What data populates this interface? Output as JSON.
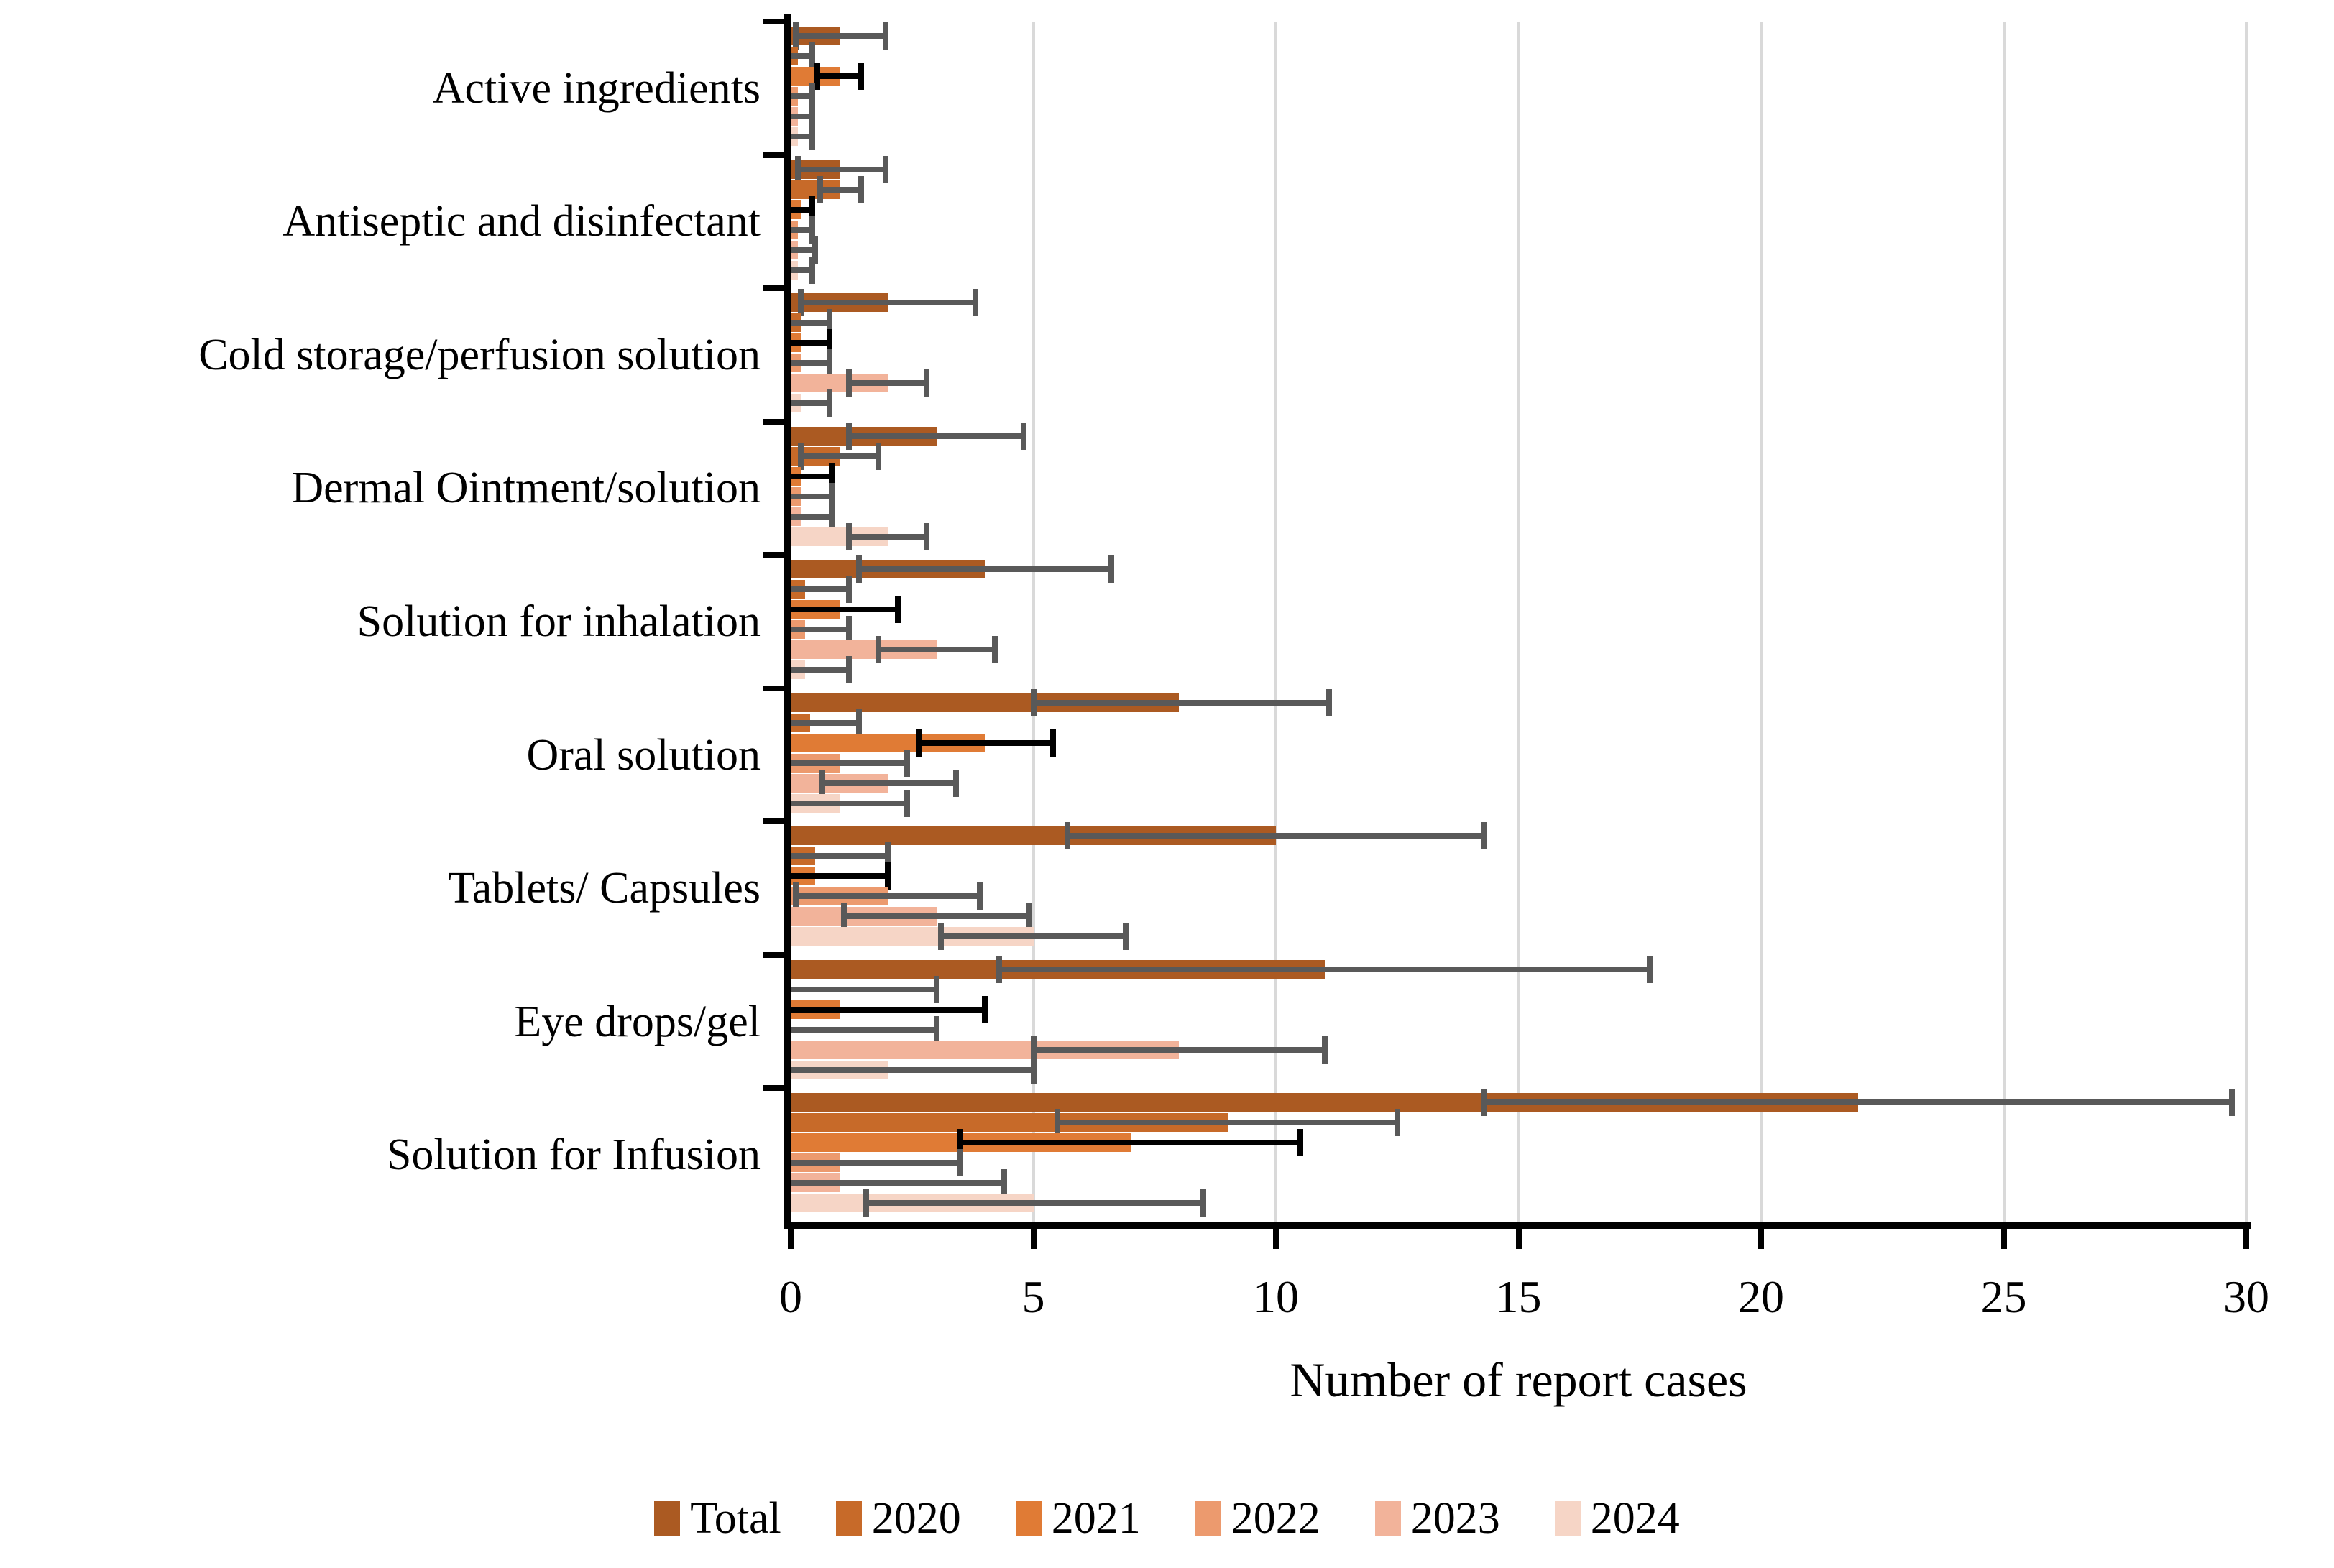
{
  "chart_data": {
    "type": "bar",
    "orientation": "horizontal-grouped",
    "xlabel": "Number of report cases",
    "xlim": [
      0,
      30
    ],
    "xticks": [
      0,
      5,
      10,
      15,
      20,
      25,
      30
    ],
    "grid": "vertical-light-gray",
    "legend_position": "bottom-center",
    "categories": [
      "Active ingredients",
      "Antiseptic and disinfectant",
      "Cold storage/perfusion solution",
      "Dermal Ointment/solution",
      "Solution for inhalation",
      "Oral solution",
      "Tablets/ Capsules",
      "Eye drops/gel",
      "Solution for Infusion"
    ],
    "colors": {
      "grid": "#d9d9d9",
      "axis": "#000000",
      "error_default": "#595959",
      "error_2021": "#000000"
    },
    "series": [
      {
        "name": "Total",
        "color": "#ab5a22",
        "error_color": "#595959",
        "values": [
          1,
          1,
          2,
          3,
          4,
          8,
          10,
          11,
          22
        ],
        "err_low": [
          0.1,
          0.15,
          0.2,
          1.2,
          1.4,
          5.0,
          5.7,
          4.3,
          14.3
        ],
        "err_high": [
          1.95,
          1.95,
          3.8,
          4.8,
          6.6,
          11.1,
          14.3,
          17.7,
          29.7
        ]
      },
      {
        "name": "2020",
        "color": "#c76a29",
        "error_color": "#595959",
        "values": [
          0.15,
          1,
          0.2,
          1,
          0.3,
          0.4,
          0.5,
          0,
          9
        ],
        "err_low": [
          0,
          0.6,
          0,
          0.2,
          0,
          0,
          0,
          0,
          5.5
        ],
        "err_high": [
          0.45,
          1.45,
          0.8,
          1.8,
          1.2,
          1.4,
          2.0,
          3.0,
          12.5
        ]
      },
      {
        "name": "2021",
        "color": "#e07b35",
        "error_color": "#000000",
        "values": [
          1,
          0.2,
          0.2,
          0.2,
          1,
          4,
          0.5,
          1,
          7
        ],
        "err_low": [
          0.55,
          0,
          0,
          0,
          0,
          2.65,
          0,
          0,
          3.5
        ],
        "err_high": [
          1.45,
          0.45,
          0.8,
          0.85,
          2.2,
          5.4,
          2.0,
          4.0,
          10.5
        ]
      },
      {
        "name": "2022",
        "color": "#ec9a6e",
        "error_color": "#595959",
        "values": [
          0.15,
          0.15,
          0.2,
          0.2,
          0.3,
          1,
          2,
          0,
          1
        ],
        "err_low": [
          0,
          0,
          0,
          0,
          0,
          0,
          0.1,
          0,
          0
        ],
        "err_high": [
          0.45,
          0.45,
          0.8,
          0.85,
          1.2,
          2.4,
          3.9,
          3.0,
          3.5
        ]
      },
      {
        "name": "2023",
        "color": "#f2b39a",
        "error_color": "#595959",
        "values": [
          0.15,
          0.15,
          2,
          0.2,
          3,
          2,
          3,
          8,
          1
        ],
        "err_low": [
          0,
          0,
          1.2,
          0,
          1.8,
          0.65,
          1.1,
          5.0,
          0
        ],
        "err_high": [
          0.45,
          0.5,
          2.8,
          0.85,
          4.2,
          3.4,
          4.9,
          11.0,
          4.4
        ]
      },
      {
        "name": "2024",
        "color": "#f6d5c6",
        "error_color": "#595959",
        "values": [
          0.15,
          0.15,
          0.2,
          2,
          0.3,
          1,
          5,
          2,
          5
        ],
        "err_low": [
          0,
          0,
          0,
          1.2,
          0,
          0,
          3.1,
          0,
          1.55
        ],
        "err_high": [
          0.45,
          0.45,
          0.8,
          2.8,
          1.2,
          2.4,
          6.9,
          5.0,
          8.5
        ]
      }
    ]
  }
}
